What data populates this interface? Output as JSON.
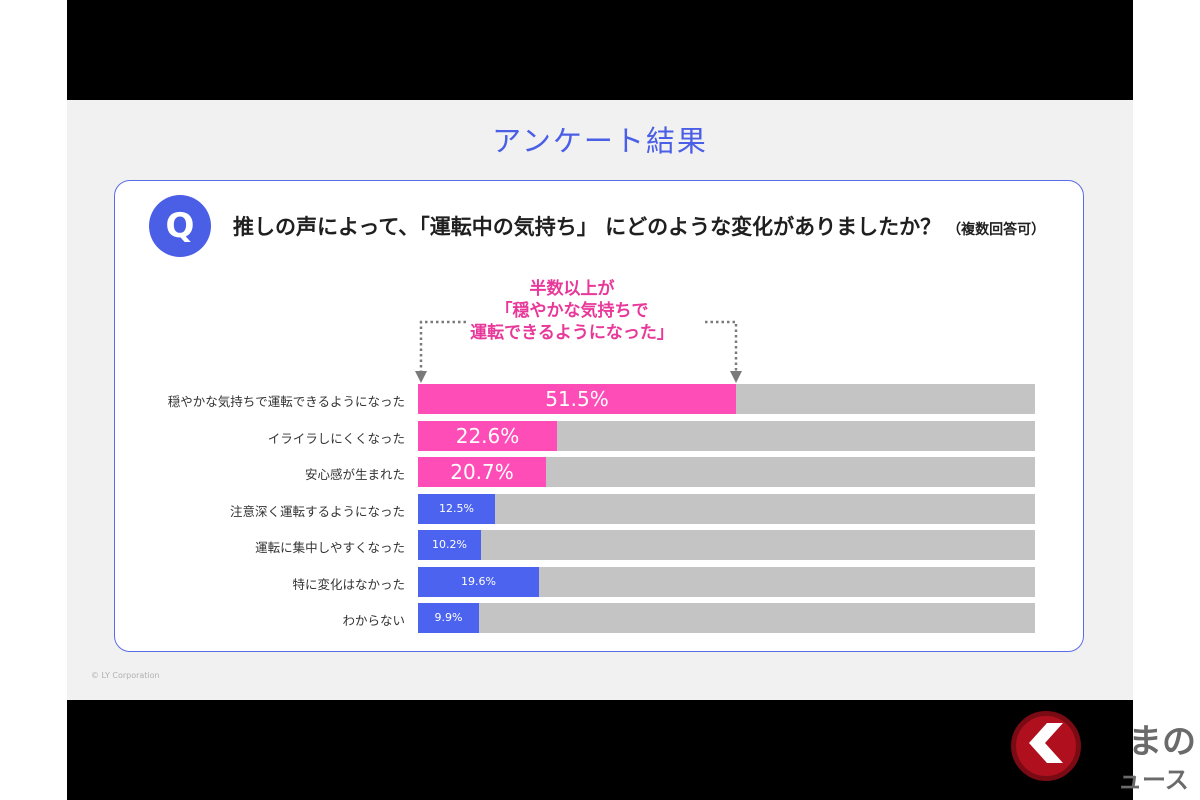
{
  "slide": {
    "title": "アンケート結果",
    "copyright": "© LY Corporation"
  },
  "question": {
    "badge": "Q",
    "text": "推しの声によって、「運転中の気持ち」 にどのような変化がありましたか？",
    "note": "（複数回答可）"
  },
  "callout": {
    "lines": [
      "半数以上が",
      "「穏やかな気持ちで",
      "運転できるようになった」"
    ]
  },
  "colors": {
    "highlight": "#ff4db8",
    "primary": "#4b63ef",
    "track": "#c4c4c4",
    "accent_text": "#e8389a"
  },
  "chart_data": {
    "type": "bar",
    "orientation": "horizontal",
    "categories": [
      "穏やかな気持ちで運転できるようになった",
      "イライラしにくくなった",
      "安心感が生まれた",
      "注意深く運転するようになった",
      "運転に集中しやすくなった",
      "特に変化はなかった",
      "わからない"
    ],
    "values": [
      51.5,
      22.6,
      20.7,
      12.5,
      10.2,
      19.6,
      9.9
    ],
    "value_labels": [
      "51.5%",
      "22.6%",
      "20.7%",
      "12.5%",
      "10.2%",
      "19.6%",
      "9.9%"
    ],
    "highlighted": [
      true,
      true,
      true,
      false,
      false,
      false,
      false
    ],
    "xlim": [
      0,
      100
    ],
    "unit": "%",
    "grid": false
  },
  "logo": {
    "text": "まの",
    "sub": "ュース"
  }
}
